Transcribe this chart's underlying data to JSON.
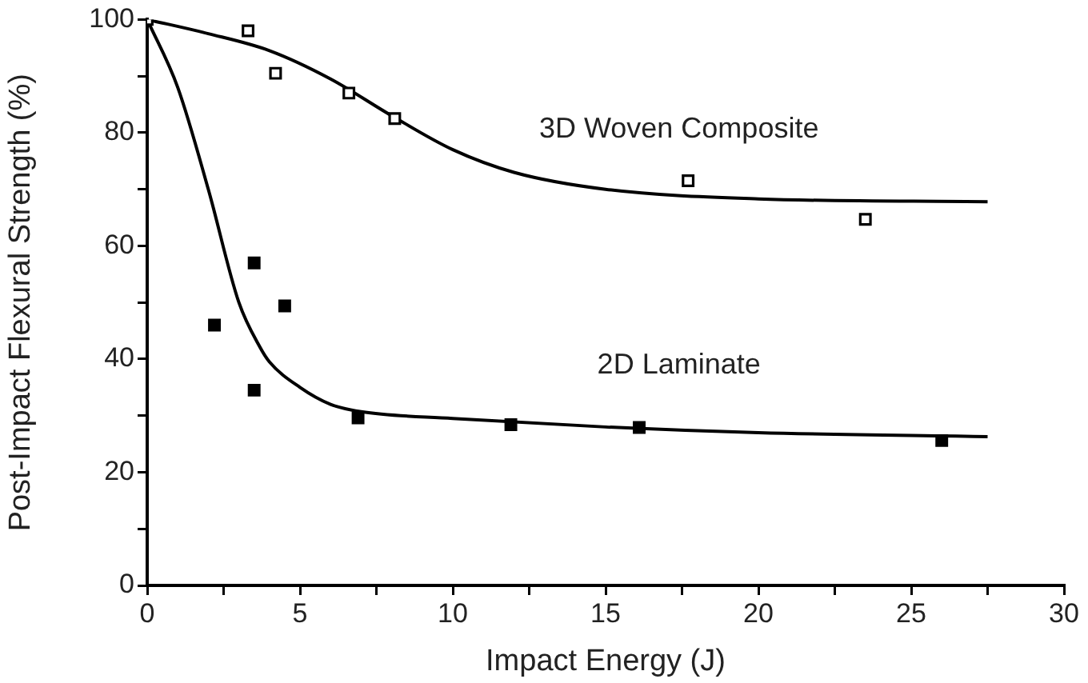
{
  "chart_data": {
    "type": "scatter",
    "xlabel": "Impact Energy (J)",
    "ylabel": "Post-Impact Flexural Strength (%)",
    "xlim": [
      0,
      30
    ],
    "xticks": [
      0,
      {
        "value": 2.5,
        "label": null
      },
      5,
      {
        "value": 7.5,
        "label": null
      },
      10,
      {
        "value": 12.5,
        "label": null
      },
      15,
      {
        "value": 17.5,
        "label": null
      },
      20,
      {
        "value": 22.5,
        "label": null
      },
      25,
      {
        "value": 27.5,
        "label": null
      },
      30
    ],
    "ylim": [
      0,
      100
    ],
    "yticks": [
      0,
      {
        "value": 10,
        "label": null
      },
      20,
      {
        "value": 30,
        "label": null
      },
      40,
      {
        "value": 50,
        "label": null
      },
      60,
      {
        "value": 70,
        "label": null
      },
      80,
      {
        "value": 90,
        "label": null
      },
      100
    ],
    "grid": false,
    "legend": false,
    "marker": "square",
    "series": [
      {
        "type": "scatter",
        "color": "#000000",
        "x": [
          0,
          3.3,
          4.2,
          6.6,
          8.1,
          17.7,
          23.5
        ],
        "values": [
          100,
          98,
          90.5,
          87,
          82.5,
          71.5,
          64.7
        ]
      },
      {
        "type": "scatter",
        "color": "#000000",
        "x": [
          2.2,
          3.5,
          4.5,
          3.5,
          6.9,
          11.9,
          16.1,
          26
        ],
        "values": [
          46,
          57,
          49.4,
          34.5,
          29.6,
          28.4,
          27.9,
          25.6
        ]
      },
      {
        "type": "line",
        "name": "3D Woven Composite",
        "color": "#000000",
        "marker": "none",
        "x": [
          0,
          2,
          4,
          6,
          8,
          10,
          12,
          15,
          20,
          27.5
        ],
        "values": [
          100,
          97.5,
          94.5,
          89.5,
          83,
          77,
          73,
          70,
          68.3,
          67.8
        ]
      },
      {
        "type": "line",
        "name": "2D Laminate",
        "color": "#000000",
        "marker": "none",
        "x": [
          0,
          1,
          2,
          3,
          3.7,
          4,
          5,
          6,
          7,
          10,
          15,
          20,
          27.5
        ],
        "values": [
          100,
          88,
          70,
          50,
          42,
          39.5,
          35,
          32,
          30.7,
          29.5,
          28,
          27,
          26.3
        ]
      }
    ]
  }
}
